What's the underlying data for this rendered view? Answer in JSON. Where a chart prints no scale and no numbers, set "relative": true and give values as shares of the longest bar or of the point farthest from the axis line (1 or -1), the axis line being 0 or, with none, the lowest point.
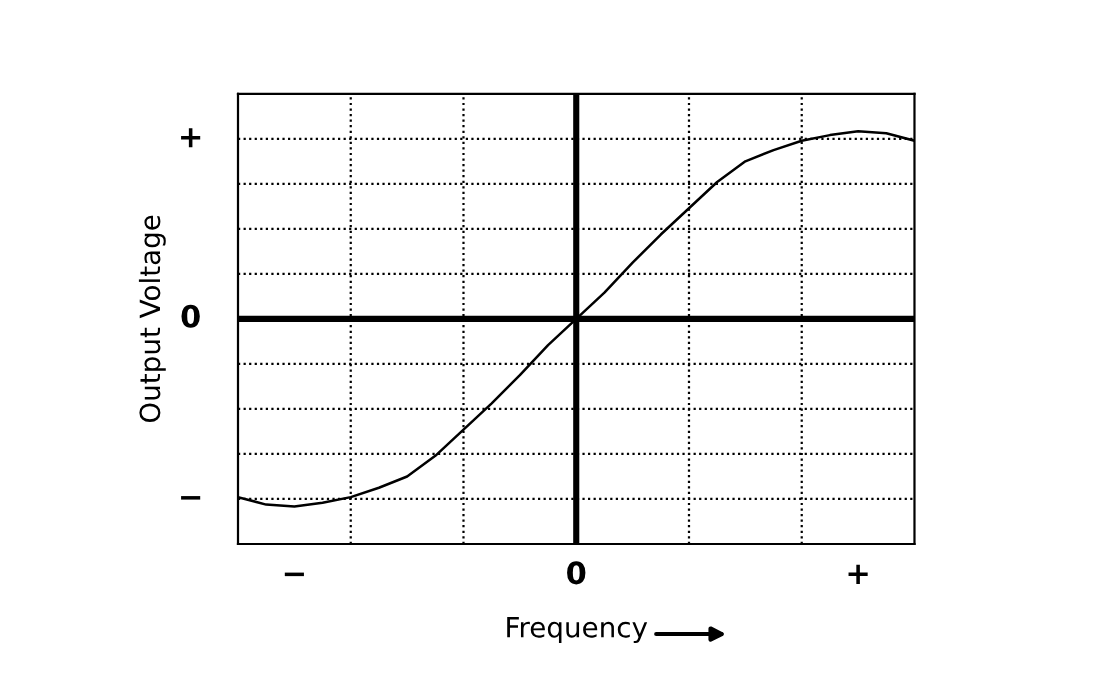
{
  "chart_data": {
    "type": "line",
    "xlabel": "Frequency",
    "ylabel": "Output Voltage",
    "relative": true,
    "categories": [
      null,
      null,
      null,
      null,
      null,
      null,
      null,
      null,
      null,
      null,
      null,
      null,
      null,
      null,
      null,
      null,
      null,
      null,
      null,
      null,
      null,
      null,
      null,
      null,
      null
    ],
    "series": [
      {
        "color": "#000000",
        "values": [
          -0.95,
          -0.99,
          -1,
          -0.98,
          -0.95,
          -0.9,
          -0.84,
          -0.73,
          -0.59,
          -0.45,
          -0.3,
          -0.14,
          0,
          0.14,
          0.3,
          0.45,
          0.59,
          0.73,
          0.84,
          0.9,
          0.95,
          0.98,
          1,
          0.99,
          0.95
        ]
      }
    ],
    "annotations": [
      "−",
      "0",
      "+",
      "+",
      "0",
      "−"
    ],
    "grid": true,
    "marker": "none",
    "line_style": "solid",
    "legend": false
  }
}
